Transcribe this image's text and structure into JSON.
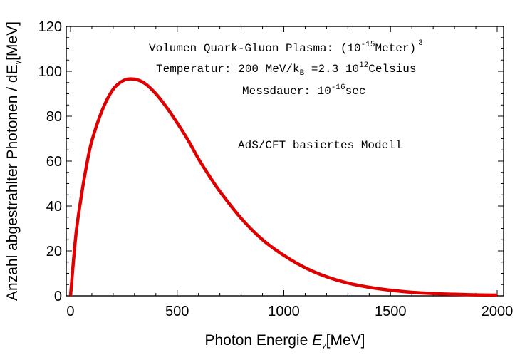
{
  "chart_data": {
    "type": "line",
    "xlabel": {
      "main": "Photon Energie ",
      "var": "E",
      "sub": "γ",
      "unit": "[MeV]"
    },
    "ylabel": {
      "main": "Anzahl abgestrahlter Photonen / dE",
      "sub": "γ",
      "unit": "[MeV]"
    },
    "xlim": [
      -20,
      2030
    ],
    "ylim": [
      0,
      120
    ],
    "xticks": [
      0,
      500,
      1000,
      1500,
      2000
    ],
    "yticks": [
      0,
      20,
      40,
      60,
      80,
      100,
      120
    ],
    "grid": false,
    "series": [
      {
        "color": "#e00000",
        "x": [
          0,
          25,
          50,
          75,
          100,
          150,
          200,
          250,
          300,
          350,
          400,
          450,
          500,
          550,
          600,
          650,
          700,
          800,
          900,
          1000,
          1100,
          1200,
          1300,
          1400,
          1500,
          1600,
          1700,
          1800,
          1900,
          2000
        ],
        "y": [
          0,
          27,
          44,
          58,
          69,
          83,
          92,
          96,
          96.5,
          94.5,
          90,
          84,
          77,
          69.5,
          61,
          53.5,
          46.5,
          34.5,
          25,
          18,
          12.5,
          8.5,
          5.7,
          3.8,
          2.5,
          1.6,
          1.05,
          0.7,
          0.45,
          0.3
        ]
      }
    ],
    "annotations": {
      "line1": {
        "pre": "Volumen Quark-Gluon Plasma: (10",
        "sup1": "-15",
        "mid": "Meter)",
        "sup2": "3"
      },
      "line2": {
        "pre": "Temperatur: 200 MeV/k",
        "sub": "B",
        "mid": " =2.3 10",
        "sup": "12",
        "post": "Celsius"
      },
      "line3": {
        "pre": "Messdauer: 10",
        "sup": "-16",
        "post": "sec"
      },
      "line4": "AdS/CFT basiertes Modell"
    }
  }
}
